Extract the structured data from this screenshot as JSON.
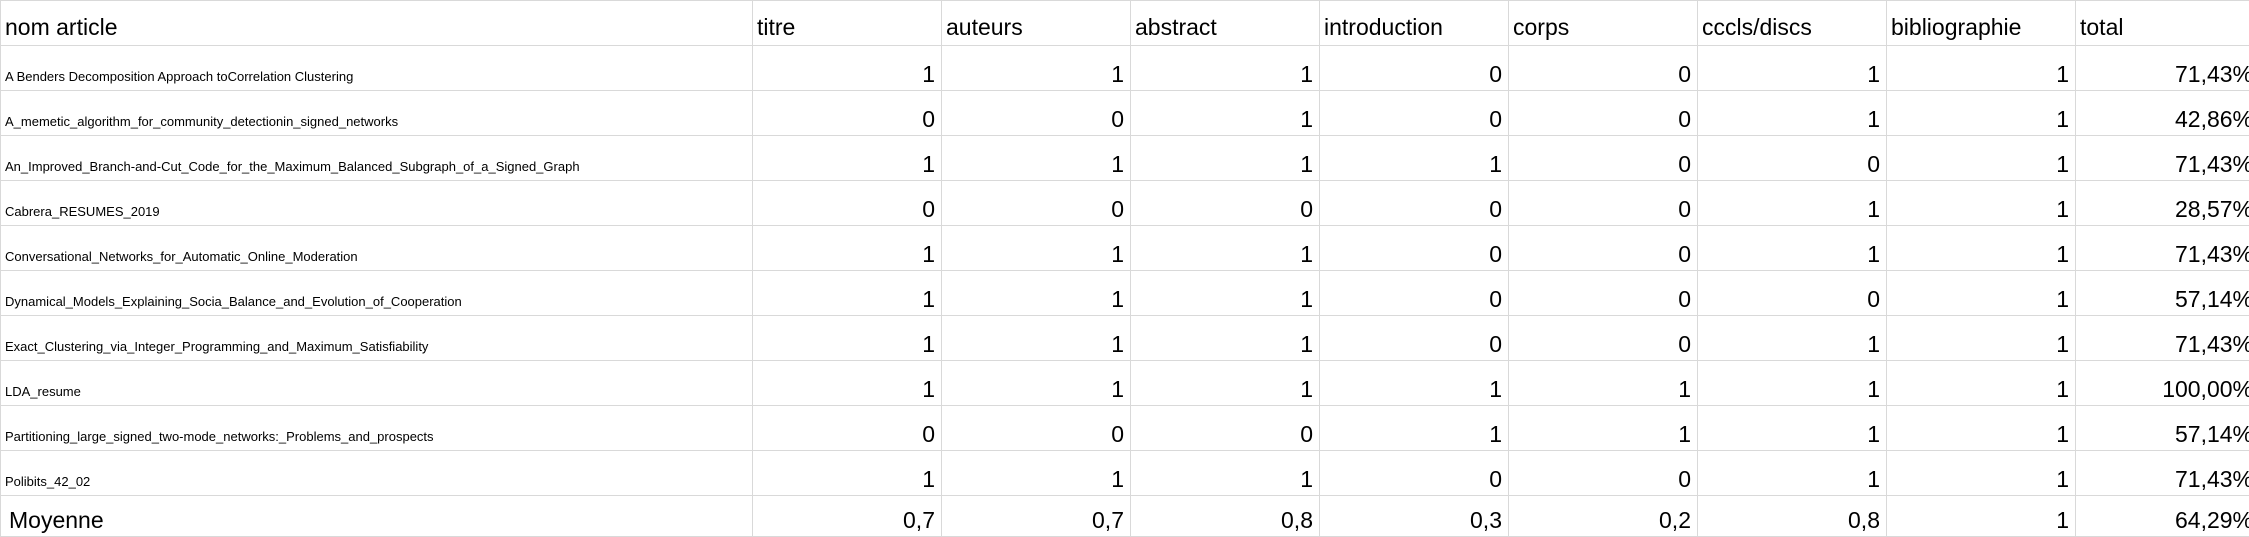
{
  "headers": [
    "nom article",
    "titre",
    "auteurs",
    "abstract",
    "introduction",
    "corps",
    "cccls/discs",
    "bibliographie",
    "total"
  ],
  "rows": [
    {
      "name": "A Benders Decomposition Approach toCorrelation Clustering",
      "values": [
        "1",
        "1",
        "1",
        "0",
        "0",
        "1",
        "1"
      ],
      "total": "71,43%"
    },
    {
      "name": "A_memetic_algorithm_for_community_detectionin_signed_networks",
      "values": [
        "0",
        "0",
        "1",
        "0",
        "0",
        "1",
        "1"
      ],
      "total": "42,86%"
    },
    {
      "name": "An_Improved_Branch-and-Cut_Code_for_the_Maximum_Balanced_Subgraph_of_a_Signed_Graph",
      "values": [
        "1",
        "1",
        "1",
        "1",
        "0",
        "0",
        "1"
      ],
      "total": "71,43%"
    },
    {
      "name": "Cabrera_RESUMES_2019",
      "values": [
        "0",
        "0",
        "0",
        "0",
        "0",
        "1",
        "1"
      ],
      "total": "28,57%"
    },
    {
      "name": "Conversational_Networks_for_Automatic_Online_Moderation",
      "values": [
        "1",
        "1",
        "1",
        "0",
        "0",
        "1",
        "1"
      ],
      "total": "71,43%"
    },
    {
      "name": "Dynamical_Models_Explaining_Socia_Balance_and_Evolution_of_Cooperation",
      "values": [
        "1",
        "1",
        "1",
        "0",
        "0",
        "0",
        "1"
      ],
      "total": "57,14%"
    },
    {
      "name": "Exact_Clustering_via_Integer_Programming_and_Maximum_Satisfiability",
      "values": [
        "1",
        "1",
        "1",
        "0",
        "0",
        "1",
        "1"
      ],
      "total": "71,43%"
    },
    {
      "name": "LDA_resume",
      "values": [
        "1",
        "1",
        "1",
        "1",
        "1",
        "1",
        "1"
      ],
      "total": "100,00%"
    },
    {
      "name": "Partitioning_large_signed_two-mode_networks:_Problems_and_prospects",
      "values": [
        "0",
        "0",
        "0",
        "1",
        "1",
        "1",
        "1"
      ],
      "total": "57,14%"
    },
    {
      "name": "Polibits_42_02",
      "values": [
        "1",
        "1",
        "1",
        "0",
        "0",
        "1",
        "1"
      ],
      "total": "71,43%"
    }
  ],
  "footer": {
    "name": "Moyenne",
    "values": [
      "0,7",
      "0,7",
      "0,8",
      "0,3",
      "0,2",
      "0,8",
      "1"
    ],
    "total": "64,29%"
  }
}
